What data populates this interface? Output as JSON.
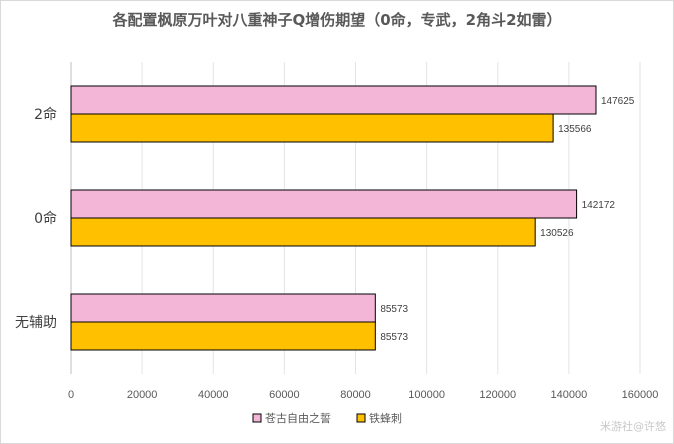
{
  "chart_data": {
    "type": "bar",
    "orientation": "horizontal",
    "title": "各配置枫原万叶对八重神子Q增伤期望（0命，专武，2角斗2如雷）",
    "categories": [
      "2命",
      "0命",
      "无辅助"
    ],
    "series": [
      {
        "name": "苍古自由之誓",
        "color": "#f4b6d6",
        "values": [
          147625,
          142172,
          85573
        ]
      },
      {
        "name": "铁蜂刺",
        "color": "#ffc000",
        "values": [
          135566,
          130526,
          85573
        ]
      }
    ],
    "xlim": [
      0,
      160000
    ],
    "xticks": [
      0,
      20000,
      40000,
      60000,
      80000,
      100000,
      120000,
      140000,
      160000
    ],
    "grid": true,
    "legend_position": "bottom",
    "xlabel": "",
    "ylabel": ""
  },
  "watermark": "米游社@许悠"
}
